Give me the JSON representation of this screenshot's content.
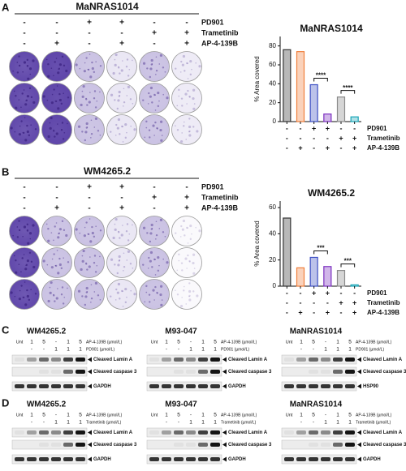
{
  "panels": {
    "a": {
      "label": "A",
      "title": "MaNRAS1014",
      "treatments": {
        "names": [
          "PD901",
          "Trametinib",
          "AP-4-139B"
        ],
        "signs": [
          [
            "-",
            "-",
            "+",
            "+",
            "-",
            "-"
          ],
          [
            "-",
            "-",
            "-",
            "-",
            "+",
            "+"
          ],
          [
            "-",
            "+",
            "-",
            "+",
            "-",
            "+"
          ]
        ]
      }
    },
    "b": {
      "label": "B",
      "title": "WM4265.2",
      "treatments": {
        "names": [
          "PD901",
          "Trametinib",
          "AP-4-139B"
        ],
        "signs": [
          [
            "-",
            "-",
            "+",
            "+",
            "-",
            "-"
          ],
          [
            "-",
            "-",
            "-",
            "-",
            "+",
            "+"
          ],
          [
            "-",
            "+",
            "-",
            "+",
            "-",
            "+"
          ]
        ]
      }
    },
    "c": {
      "label": "C",
      "blots": [
        {
          "title": "WM4265.2",
          "lanes": [
            "Unt",
            "1",
            "5",
            "-",
            "1",
            "5"
          ],
          "row2": [
            "-",
            "-",
            "1",
            "1",
            "1"
          ],
          "row_labels": [
            "AP-4-139B (µmol/L)",
            "PD901 (µmol/L)"
          ],
          "bands": [
            "Cleaved Lamin A",
            "Cleaved caspase 3",
            "GAPDH"
          ]
        },
        {
          "title": "M93-047",
          "lanes": [
            "Unt",
            "1",
            "5",
            "-",
            "1",
            "5"
          ],
          "row2": [
            "-",
            "-",
            "1",
            "1",
            "1"
          ],
          "row_labels": [
            "AP-4-139B (µmol/L)",
            "PD901 (µmol/L)"
          ],
          "bands": [
            "Cleaved Lamin A",
            "Cleaved caspase 3",
            "GAPDH"
          ]
        },
        {
          "title": "MaNRAS1014",
          "lanes": [
            "Unt",
            "1",
            "5",
            "-",
            "1",
            "5"
          ],
          "row2": [
            "-",
            "-",
            "1",
            "1",
            "1"
          ],
          "row_labels": [
            "AP-4-139B (µmol/L)",
            "PD901 (µmol/L)"
          ],
          "bands": [
            "Cleaved Lamin A",
            "Cleaved caspase 3",
            "HSP90"
          ]
        }
      ]
    },
    "d": {
      "label": "D",
      "blots": [
        {
          "title": "WM4265.2",
          "lanes": [
            "Unt",
            "1",
            "5",
            "-",
            "1",
            "5"
          ],
          "row2": [
            "-",
            "-",
            "1",
            "1",
            "1"
          ],
          "row_labels": [
            "AP-4-139B (µmol/L)",
            "Trametinib (µmol/L)"
          ],
          "bands": [
            "Cleaved Lamin A",
            "Cleaved caspase 3",
            "GAPDH"
          ]
        },
        {
          "title": "M93-047",
          "lanes": [
            "Unt",
            "1",
            "5",
            "-",
            "1",
            "5"
          ],
          "row2": [
            "-",
            "-",
            "1",
            "1",
            "1"
          ],
          "row_labels": [
            "AP-4-139B (µmol/L)",
            "Trametinib (µmol/L)"
          ],
          "bands": [
            "Cleaved Lamin A",
            "Cleaved caspase 3",
            "GAPDH"
          ]
        },
        {
          "title": "MaNRAS1014",
          "lanes": [
            "Unt",
            "1",
            "5",
            "-",
            "1",
            "5"
          ],
          "row2": [
            "-",
            "-",
            "1",
            "1",
            "1"
          ],
          "row_labels": [
            "AP-4-139B (µmol/L)",
            "Trametinib (µmol/L)"
          ],
          "bands": [
            "Cleaved Lamin A",
            "Cleaved caspase 3",
            "GAPDH"
          ]
        }
      ]
    }
  },
  "chart_data": [
    {
      "type": "bar",
      "title": "MaNRAS1014",
      "ylabel": "% Area covered",
      "values": [
        76,
        74,
        39,
        8,
        26,
        5
      ],
      "colors": [
        "#333333",
        "#f07f3c",
        "#3d4fc4",
        "#7b2fbf",
        "#8a8a8a",
        "#1aa6b7"
      ],
      "ylim": [
        0,
        90
      ],
      "yticks": [
        0,
        20,
        40,
        60,
        80
      ],
      "annotations": [
        "****",
        "****"
      ],
      "treatments": {
        "names": [
          "PD901",
          "Trametinib",
          "AP-4-139B"
        ],
        "signs": [
          [
            "-",
            "-",
            "+",
            "+",
            "-",
            "-"
          ],
          [
            "-",
            "-",
            "-",
            "-",
            "+",
            "+"
          ],
          [
            "-",
            "+",
            "-",
            "+",
            "-",
            "+"
          ]
        ]
      }
    },
    {
      "type": "bar",
      "title": "WM4265.2",
      "ylabel": "% Area covered",
      "values": [
        52,
        14,
        22,
        15,
        12,
        1
      ],
      "colors": [
        "#333333",
        "#f07f3c",
        "#3d4fc4",
        "#7b2fbf",
        "#8a8a8a",
        "#1aa6b7"
      ],
      "ylim": [
        0,
        65
      ],
      "yticks": [
        0,
        20,
        40,
        60
      ],
      "annotations": [
        "***",
        "***"
      ],
      "treatments": {
        "names": [
          "PD901",
          "Trametinib",
          "AP-4-139B"
        ],
        "signs": [
          [
            "-",
            "-",
            "+",
            "+",
            "-",
            "-"
          ],
          [
            "-",
            "-",
            "-",
            "-",
            "+",
            "+"
          ],
          [
            "-",
            "+",
            "-",
            "+",
            "-",
            "+"
          ]
        ]
      }
    }
  ]
}
